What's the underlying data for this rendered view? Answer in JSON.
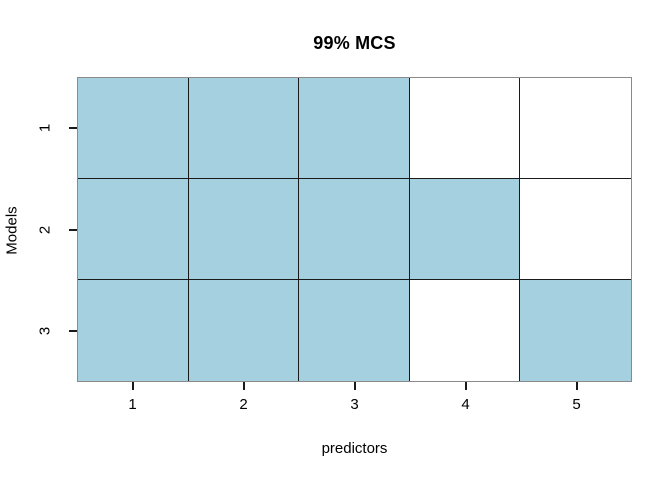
{
  "title": "99% MCS",
  "colors": {
    "member_fill": "#a4d0e0",
    "non_member_fill": "#ffffff",
    "grid_line": "#1a1a1a",
    "box_line": "#8a8a8a",
    "text": "#000000"
  },
  "x_axis": {
    "label": "predictors",
    "ticks": [
      "1",
      "2",
      "3",
      "4",
      "5"
    ]
  },
  "y_axis": {
    "label": "Models",
    "ticks": [
      "1",
      "2",
      "3"
    ]
  },
  "chart_data": {
    "type": "heatmap",
    "title": "99% MCS",
    "xlabel": "predictors",
    "ylabel": "Models",
    "x": [
      1,
      2,
      3,
      4,
      5
    ],
    "y": [
      1,
      2,
      3
    ],
    "rows": [
      {
        "model": 1,
        "values": [
          1,
          1,
          1,
          0,
          0
        ]
      },
      {
        "model": 2,
        "values": [
          1,
          1,
          1,
          1,
          0
        ]
      },
      {
        "model": 3,
        "values": [
          1,
          1,
          1,
          0,
          1
        ]
      }
    ],
    "value_encoding": {
      "1": "shaded light blue cell",
      "0": "white cell"
    },
    "grid": "on",
    "legend_position": "none",
    "xlim": [
      0.5,
      5.5
    ],
    "ylim": [
      0.5,
      3.5
    ]
  }
}
